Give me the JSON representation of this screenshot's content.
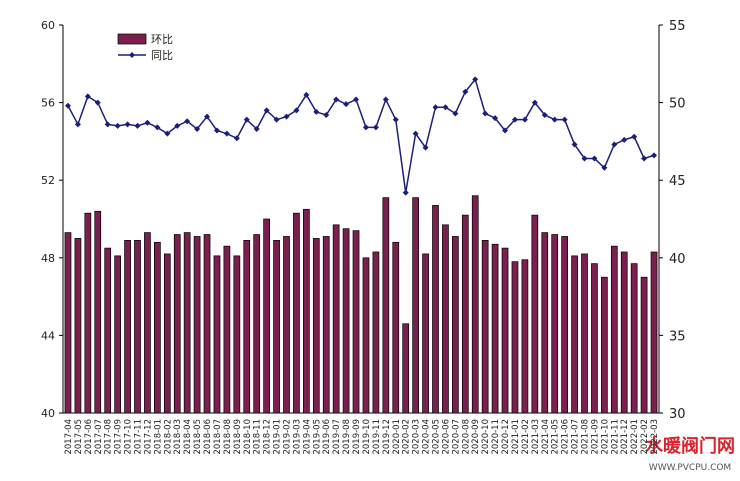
{
  "chart_data": {
    "type": "bar_line",
    "categories": [
      "2017-04",
      "2017-05",
      "2017-06",
      "2017-07",
      "2017-08",
      "2017-09",
      "2017-10",
      "2017-11",
      "2017-12",
      "2018-01",
      "2018-02",
      "2018-03",
      "2018-04",
      "2018-05",
      "2018-06",
      "2018-07",
      "2018-08",
      "2018-09",
      "2018-10",
      "2018-11",
      "2018-12",
      "2019-01",
      "2019-02",
      "2019-03",
      "2019-04",
      "2019-05",
      "2019-06",
      "2019-07",
      "2019-08",
      "2019-09",
      "2019-10",
      "2019-11",
      "2019-12",
      "2020-01",
      "2020-02",
      "2020-03",
      "2020-04",
      "2020-05",
      "2020-06",
      "2020-07",
      "2020-08",
      "2020-09",
      "2020-10",
      "2020-11",
      "2020-12",
      "2021-01",
      "2021-02",
      "2021-03",
      "2021-04",
      "2021-05",
      "2021-06",
      "2021-07",
      "2021-08",
      "2021-09",
      "2021-10",
      "2021-11",
      "2021-12",
      "2022-01",
      "2022-02",
      "2022-03"
    ],
    "series": [
      {
        "name": "环比",
        "type": "bar",
        "color": "#7a1f4e",
        "values": [
          49.3,
          49.0,
          50.3,
          50.4,
          48.5,
          48.1,
          48.9,
          48.9,
          49.3,
          48.8,
          48.2,
          49.2,
          49.3,
          49.1,
          49.2,
          48.1,
          48.6,
          48.1,
          48.9,
          49.2,
          50.0,
          48.9,
          49.1,
          50.3,
          50.5,
          49.0,
          49.1,
          49.7,
          49.5,
          49.4,
          48.0,
          48.3,
          51.1,
          48.8,
          44.6,
          51.1,
          48.2,
          50.7,
          49.7,
          49.1,
          50.2,
          51.2,
          48.9,
          48.7,
          48.5,
          47.8,
          47.9,
          50.2,
          49.3,
          49.2,
          49.1,
          48.1,
          48.2,
          47.7,
          47.0,
          48.6,
          48.3,
          47.7,
          47.0,
          48.3
        ]
      },
      {
        "name": "同比",
        "type": "line",
        "axis": "y2",
        "color": "#1a1f7a",
        "values": [
          49.8,
          48.6,
          50.4,
          50.0,
          48.6,
          48.5,
          48.6,
          48.5,
          48.7,
          48.4,
          48.0,
          48.5,
          48.8,
          48.3,
          49.1,
          48.2,
          48.0,
          47.7,
          48.9,
          48.3,
          49.5,
          48.9,
          49.1,
          49.5,
          50.5,
          49.4,
          49.2,
          50.2,
          49.9,
          50.2,
          48.4,
          48.4,
          50.2,
          48.9,
          44.2,
          48.0,
          47.1,
          49.7,
          49.7,
          49.3,
          50.7,
          51.5,
          49.3,
          49.0,
          48.2,
          48.9,
          48.9,
          50.0,
          49.2,
          48.9,
          48.9,
          47.3,
          46.4,
          46.4,
          45.8,
          47.3,
          47.6,
          47.8,
          46.4,
          46.6
        ]
      }
    ],
    "ylim": [
      40,
      60
    ],
    "yticks": [
      40,
      44,
      48,
      52,
      56,
      60
    ],
    "y2lim": [
      30,
      55
    ],
    "y2ticks": [
      30,
      35,
      40,
      45,
      50,
      55
    ],
    "legend": "upper left"
  },
  "watermark": {
    "title": "水暖阀门网",
    "url": "WWW.PVCPU.COM"
  }
}
